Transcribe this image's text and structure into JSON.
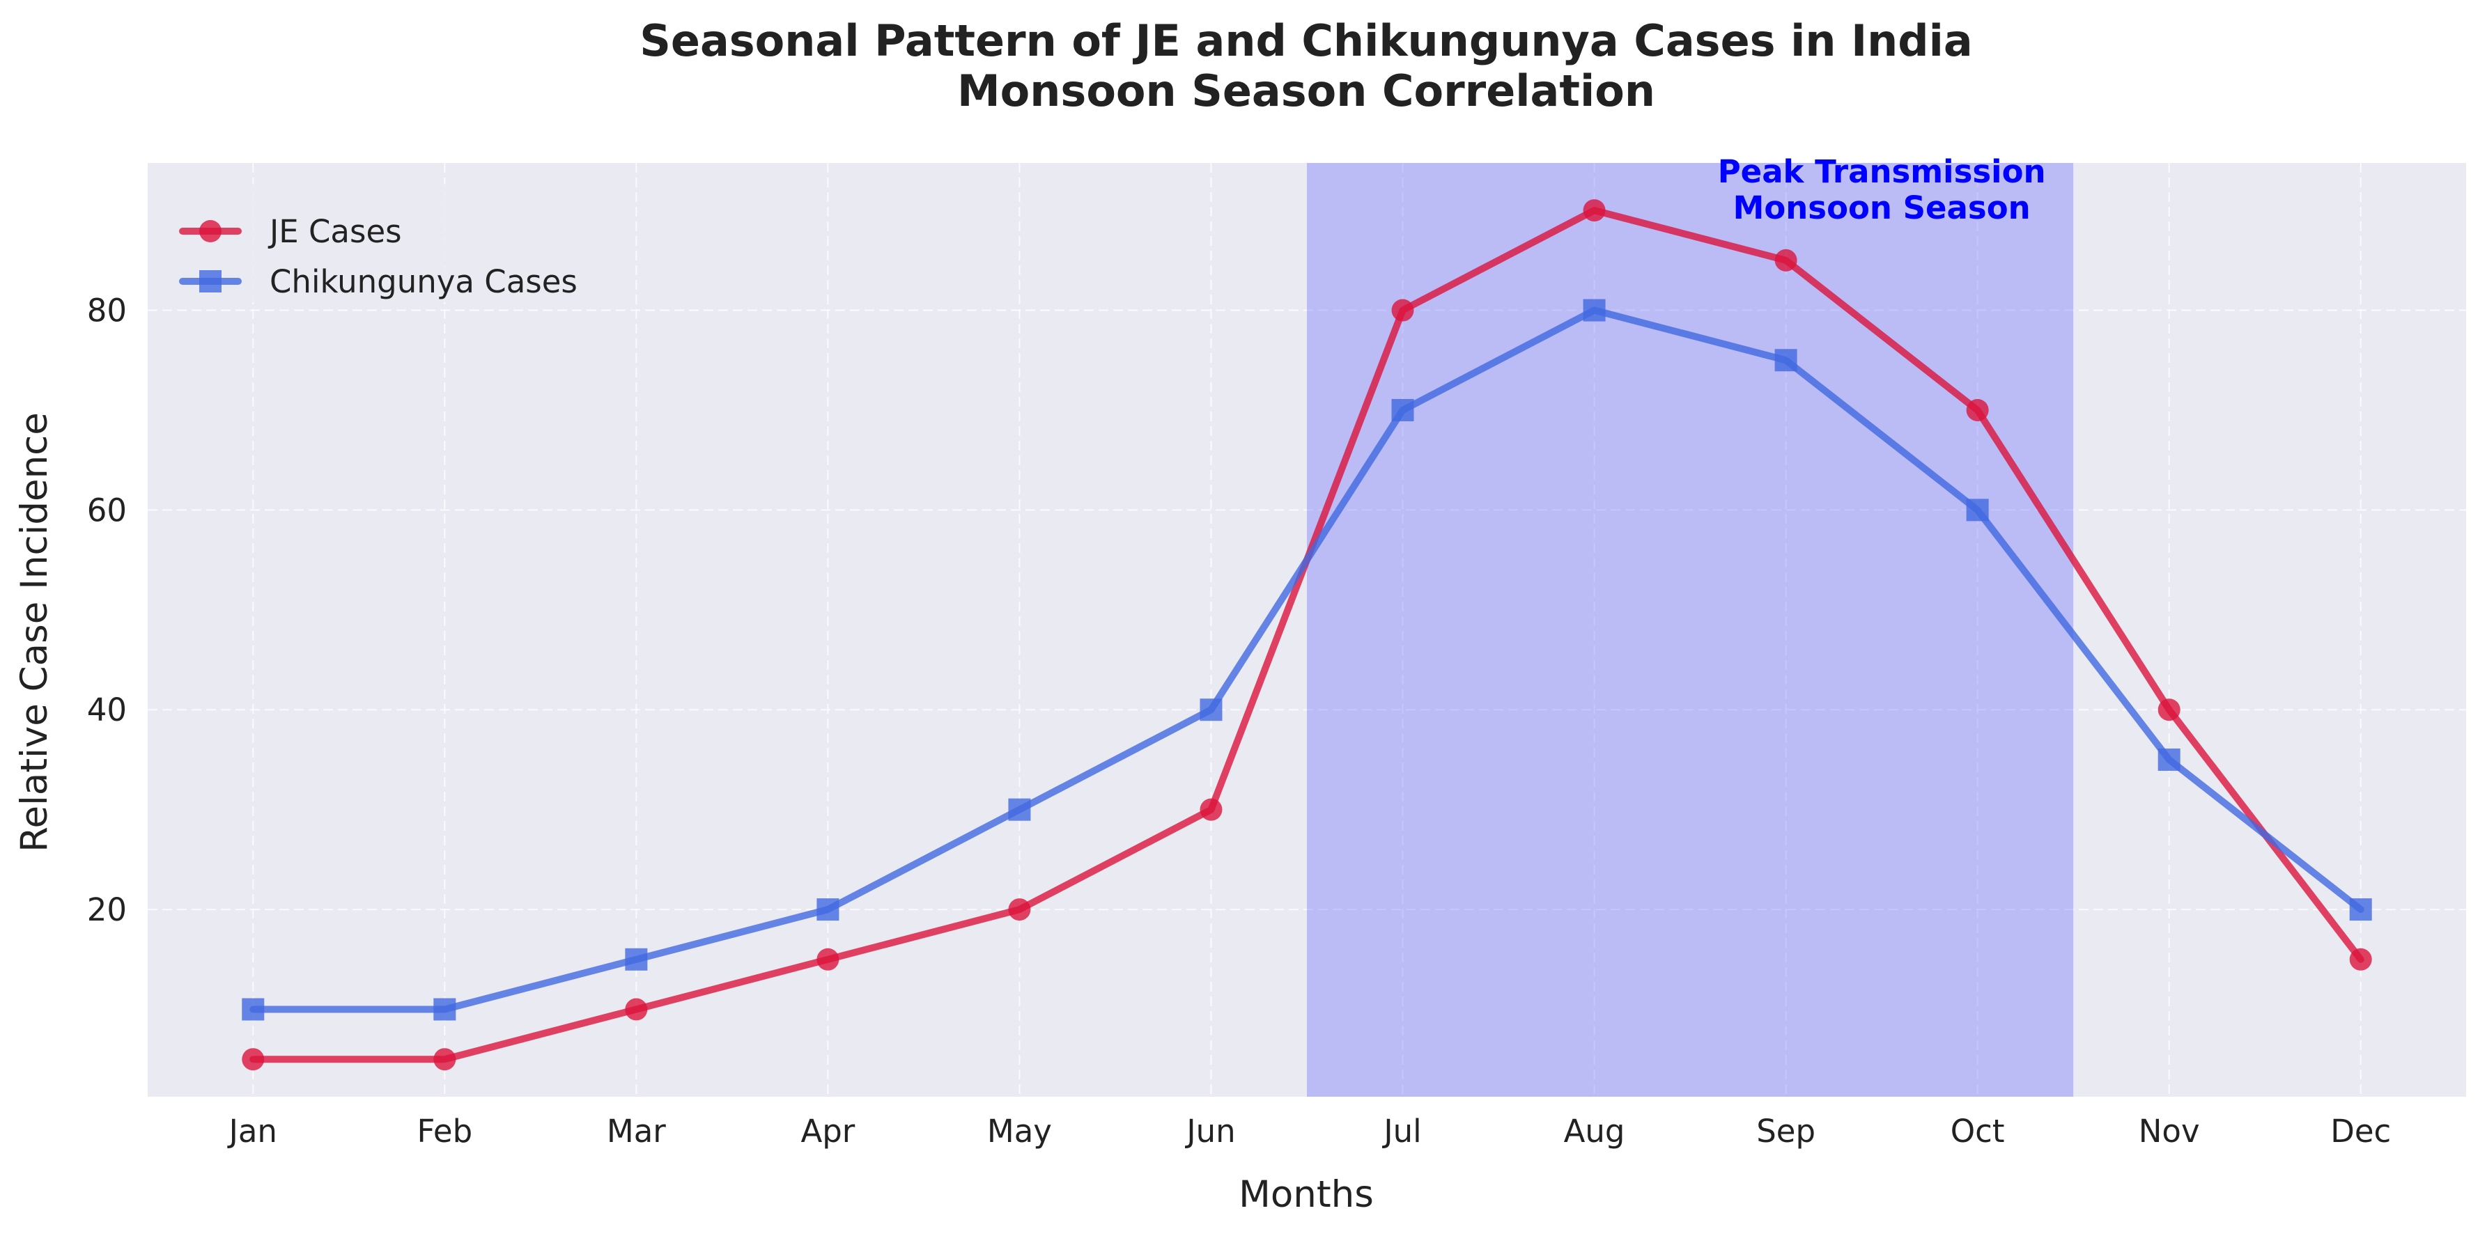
{
  "chart_data": {
    "type": "line",
    "title": "Seasonal Pattern of JE and Chikungunya Cases in India",
    "subtitle": "Monsoon Season Correlation",
    "xlabel": "Months",
    "ylabel": "Relative Case Incidence",
    "categories": [
      "Jan",
      "Feb",
      "Mar",
      "Apr",
      "May",
      "Jun",
      "Jul",
      "Aug",
      "Sep",
      "Oct",
      "Nov",
      "Dec"
    ],
    "series": [
      {
        "name": "JE Cases",
        "values": [
          5,
          5,
          10,
          15,
          20,
          30,
          80,
          90,
          85,
          70,
          40,
          15
        ],
        "color": "#dc143c",
        "marker": "circle"
      },
      {
        "name": "Chikungunya Cases",
        "values": [
          10,
          10,
          15,
          20,
          30,
          40,
          70,
          80,
          75,
          60,
          35,
          20
        ],
        "color": "#4169e1",
        "marker": "square"
      }
    ],
    "ylim": [
      1.25,
      94.75
    ],
    "yticks": [
      20,
      40,
      60,
      80
    ],
    "ytick_labels": [
      "20",
      "40",
      "60",
      "80"
    ],
    "grid": true,
    "legend_position": "upper-left",
    "highlight": {
      "x_start": 5.5,
      "x_end": 9.5,
      "color": "#6464ff",
      "label_line1": "Peak Transmission",
      "label_line2": "Monsoon Season",
      "label_color": "#0000ff",
      "label_x": 8.5,
      "label_y": 90
    }
  }
}
